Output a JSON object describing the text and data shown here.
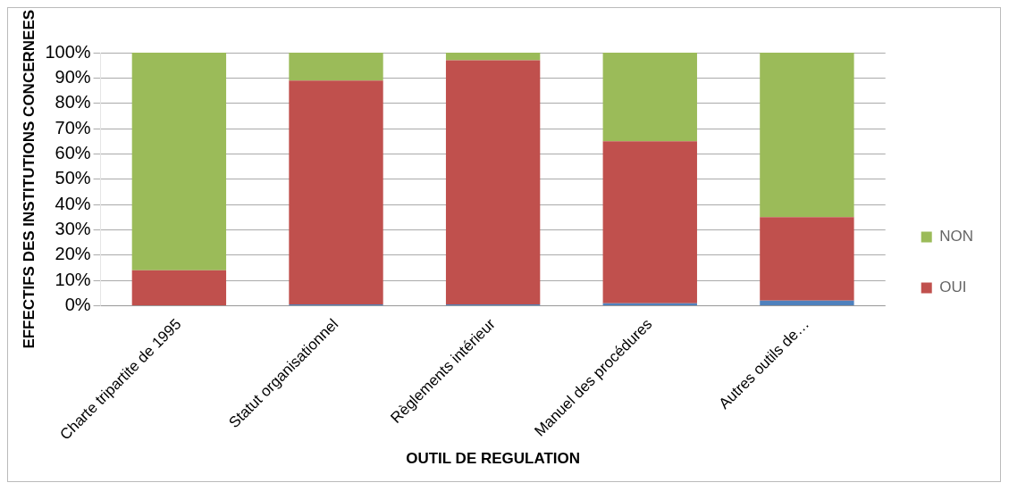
{
  "chart_data": {
    "type": "bar",
    "stacked": true,
    "xlabel": "OUTIL DE REGULATION",
    "ylabel": "EFFECTIFS DES INSTITUTIONS CONCERNEES",
    "categories": [
      "Charte tripartite de 1995",
      "Statut organisationnel",
      "Règlements intérieur",
      "Manuel des procédures",
      "Autres outils de…"
    ],
    "series": [
      {
        "color": "#4f81bd",
        "values": [
          0,
          0.5,
          0.5,
          1,
          2
        ]
      },
      {
        "name": "OUI",
        "color": "#c0504d",
        "values": [
          14,
          88.5,
          96.5,
          64,
          33
        ]
      },
      {
        "name": "NON",
        "color": "#9bbb59",
        "values": [
          86,
          11,
          3,
          35,
          65
        ]
      }
    ],
    "ylim": [
      0,
      100
    ],
    "yticks": [
      {
        "value": 0,
        "label": "0%"
      },
      {
        "value": 10,
        "label": "10%"
      },
      {
        "value": 20,
        "label": "20%"
      },
      {
        "value": 30,
        "label": "30%"
      },
      {
        "value": 40,
        "label": "40%"
      },
      {
        "value": 50,
        "label": "50%"
      },
      {
        "value": 60,
        "label": "60%"
      },
      {
        "value": 70,
        "label": "70%"
      },
      {
        "value": 80,
        "label": "80%"
      },
      {
        "value": 90,
        "label": "90%"
      },
      {
        "value": 100,
        "label": "100%"
      }
    ],
    "grid": "y",
    "legend": "right"
  }
}
